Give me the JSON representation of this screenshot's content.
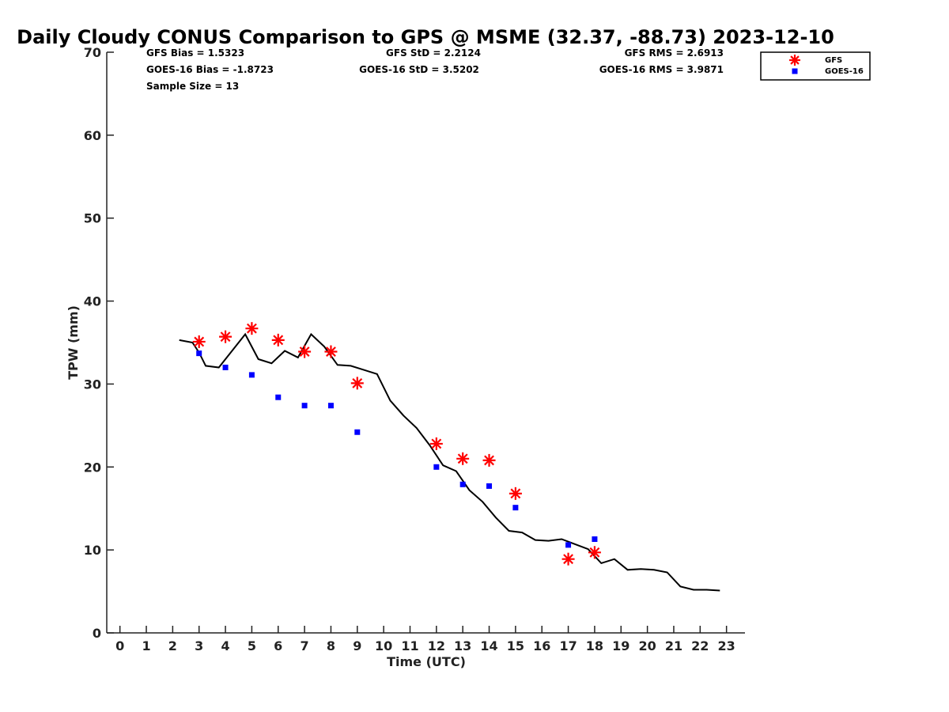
{
  "chart_data": {
    "type": "scatter",
    "title": "Daily Cloudy CONUS Comparison to GPS @ MSME (32.37, -88.73) 2023-12-10",
    "xlabel": "Time (UTC)",
    "ylabel": "TPW (mm)",
    "xlim": [
      -0.5,
      23.7
    ],
    "ylim": [
      0,
      70
    ],
    "xticks": [
      0,
      1,
      2,
      3,
      4,
      5,
      6,
      7,
      8,
      9,
      10,
      11,
      12,
      13,
      14,
      15,
      16,
      17,
      18,
      19,
      20,
      21,
      22,
      23
    ],
    "yticks": [
      0,
      10,
      20,
      30,
      40,
      50,
      60,
      70
    ],
    "grid": false,
    "legend_position": "top-right",
    "stats": {
      "gfs_bias": "GFS Bias = 1.5323",
      "gfs_std": "GFS StD = 2.2124",
      "gfs_rms": "GFS RMS = 2.6913",
      "goes_bias": "GOES-16 Bias = -1.8723",
      "goes_std": "GOES-16 StD = 3.5202",
      "goes_rms": "GOES-16 RMS = 3.9871",
      "sample_size": "Sample Size = 13"
    },
    "series": [
      {
        "kind": "line",
        "color": "#000000",
        "x": [
          2.25,
          2.75,
          3.0,
          3.25,
          3.75,
          4.25,
          4.75,
          5.25,
          5.75,
          6.25,
          6.75,
          7.25,
          7.75,
          8.25,
          8.75,
          9.25,
          9.75,
          10.25,
          10.75,
          11.25,
          11.75,
          12.25,
          12.75,
          13.25,
          13.75,
          14.25,
          14.75,
          15.25,
          15.75,
          16.25,
          16.75,
          17.25,
          17.75,
          18.25,
          18.75,
          19.25,
          19.75,
          20.25,
          20.75,
          21.25,
          21.75,
          22.25,
          22.75
        ],
        "y": [
          35.3,
          35.0,
          33.8,
          32.2,
          32.0,
          34.0,
          36.0,
          33.0,
          32.5,
          34.0,
          33.2,
          36.0,
          34.5,
          32.3,
          32.2,
          31.7,
          31.2,
          28.0,
          26.2,
          24.7,
          22.6,
          20.2,
          19.5,
          17.2,
          15.8,
          13.9,
          12.3,
          12.1,
          11.2,
          11.1,
          11.3,
          10.7,
          10.1,
          8.4,
          8.9,
          7.6,
          7.7,
          7.6,
          7.3,
          5.6,
          5.2,
          5.2,
          5.1
        ]
      },
      {
        "name": "GFS",
        "kind": "asterisk",
        "color": "#ff0000",
        "x": [
          3,
          4,
          5,
          6,
          7,
          8,
          9,
          12,
          13,
          14,
          15,
          17,
          18
        ],
        "y": [
          35.1,
          35.7,
          36.7,
          35.3,
          33.9,
          33.9,
          30.1,
          22.8,
          21.0,
          20.8,
          16.8,
          8.9,
          9.7
        ]
      },
      {
        "name": "GOES-16",
        "kind": "square",
        "color": "#0000ff",
        "x": [
          3,
          4,
          5,
          6,
          7,
          8,
          9,
          12,
          13,
          14,
          15,
          17,
          18
        ],
        "y": [
          33.7,
          32.0,
          31.1,
          28.4,
          27.4,
          27.4,
          24.2,
          20.0,
          17.9,
          17.7,
          15.1,
          10.6,
          11.3
        ]
      }
    ]
  }
}
